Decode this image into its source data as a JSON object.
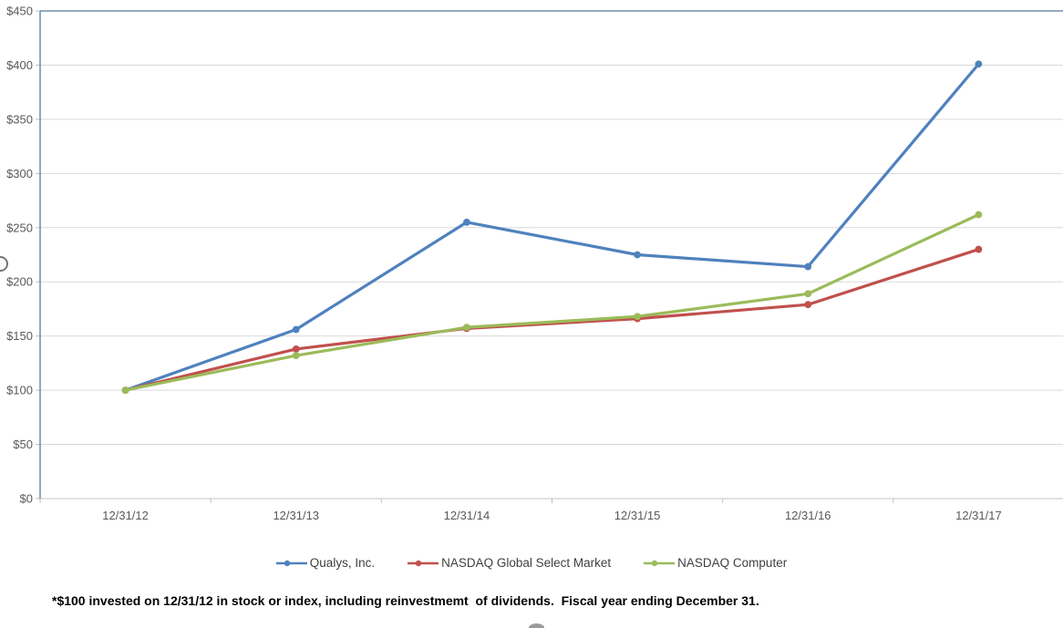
{
  "chart_data": {
    "type": "line",
    "title": "",
    "xlabel": "",
    "ylabel": "",
    "categories": [
      "12/31/12",
      "12/31/13",
      "12/31/14",
      "12/31/15",
      "12/31/16",
      "12/31/17"
    ],
    "series": [
      {
        "name": "Qualys, Inc.",
        "color": "#4F81BD",
        "values": [
          100,
          156,
          255,
          225,
          214,
          401
        ]
      },
      {
        "name": "NASDAQ Global Select Market",
        "color": "#C0504D",
        "values": [
          100,
          138,
          157,
          166,
          179,
          230
        ]
      },
      {
        "name": "NASDAQ Computer",
        "color": "#9BBB59",
        "values": [
          100,
          132,
          158,
          168,
          189,
          262
        ]
      }
    ],
    "ylim": [
      0,
      450
    ],
    "ytick_step": 50,
    "ytick_labels": [
      "$0",
      "$50",
      "$100",
      "$150",
      "$200",
      "$250",
      "$300",
      "$350",
      "$400",
      "$450"
    ],
    "grid": true,
    "legend_position": "bottom",
    "marker": "dot"
  },
  "styles": {
    "gridline_color": "#D9D9D9",
    "plot_border_color": "#54789E",
    "axis_tick_color": "#BFBFBF",
    "bottom_axis_color": "#C6C6C6",
    "axis_text_color": "#595959"
  },
  "footnote": "*$100 invested on 12/31/12 in stock or index, including reinvestmemt  of dividends.  Fiscal year ending December 31."
}
